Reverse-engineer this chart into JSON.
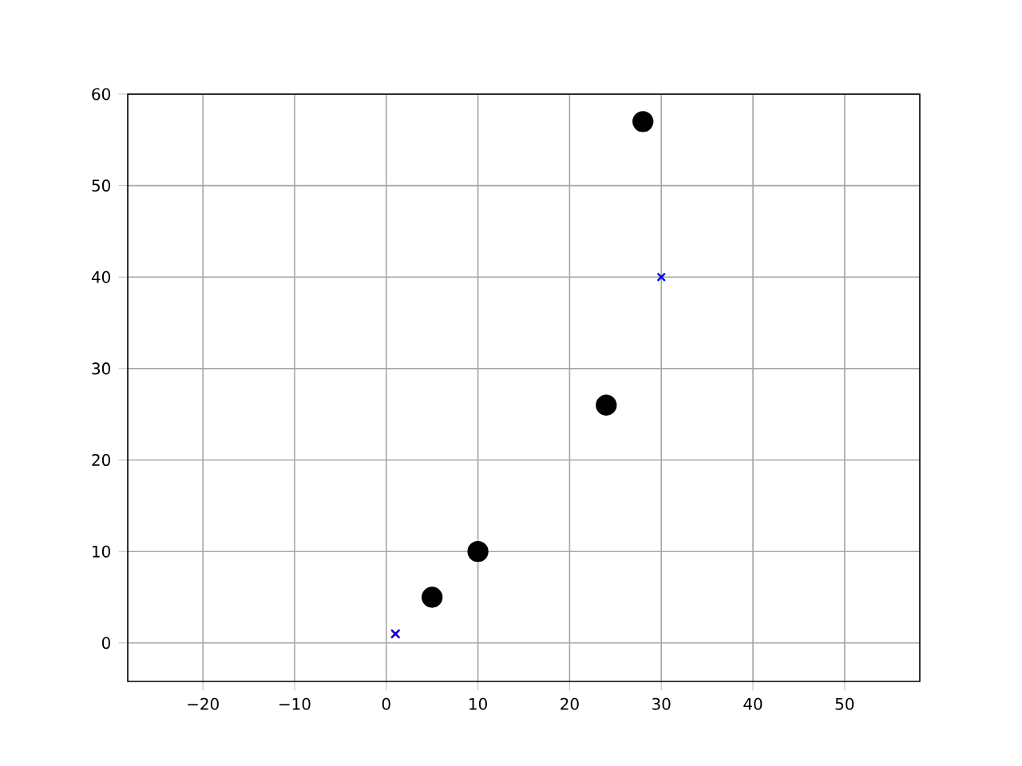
{
  "chart_data": {
    "type": "scatter",
    "xlim": [
      -28.2,
      58.2
    ],
    "ylim": [
      -4.2,
      60
    ],
    "xticks": [
      {
        "value": -20,
        "label": "−20"
      },
      {
        "value": -10,
        "label": "−10"
      },
      0,
      10,
      20,
      30,
      40,
      50
    ],
    "yticks": [
      0,
      10,
      20,
      30,
      40,
      50,
      60
    ],
    "grid": true,
    "series": [
      {
        "color": "#000000",
        "marker": "circle",
        "x": [
          5,
          10,
          24,
          28
        ],
        "values": [
          5,
          10,
          26,
          57
        ]
      },
      {
        "color": "#ff0000",
        "marker": "cross",
        "x": [
          1
        ],
        "values": [
          1
        ]
      },
      {
        "color": "#0000ff",
        "marker": "cross",
        "x": [
          1,
          30
        ],
        "values": [
          1,
          40
        ]
      }
    ]
  }
}
